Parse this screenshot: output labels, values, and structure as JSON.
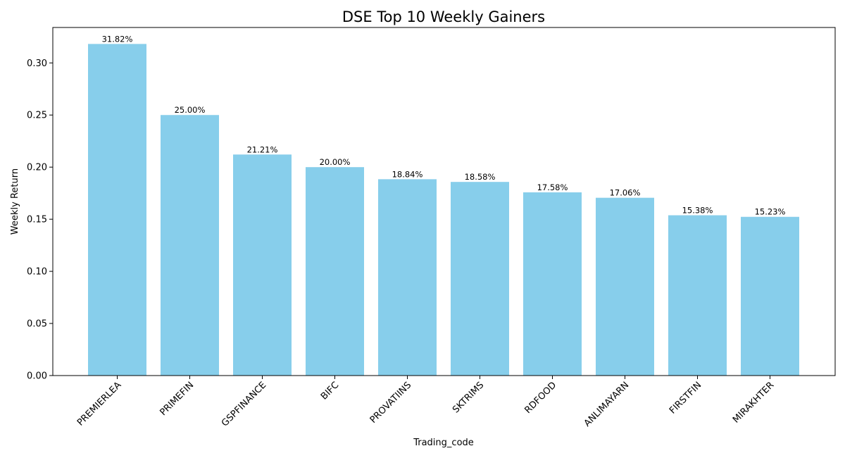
{
  "chart_data": {
    "type": "bar",
    "title": "DSE Top 10 Weekly Gainers",
    "xlabel": "Trading_code",
    "ylabel": "Weekly Return",
    "categories": [
      "PREMIERLEA",
      "PRIMEFIN",
      "GSPFINANCE",
      "BIFC",
      "PROVATIINS",
      "SKTRIMS",
      "RDFOOD",
      "ANLIMAYARN",
      "FIRSTFIN",
      "MIRAKHTER"
    ],
    "values": [
      0.3182,
      0.25,
      0.2121,
      0.2,
      0.1884,
      0.1858,
      0.1758,
      0.1706,
      0.1538,
      0.1523
    ],
    "data_labels": [
      "31.82%",
      "25.00%",
      "21.21%",
      "20.00%",
      "18.84%",
      "18.58%",
      "17.58%",
      "17.06%",
      "15.38%",
      "15.23%"
    ],
    "yticks": [
      0.0,
      0.05,
      0.1,
      0.15,
      0.2,
      0.25,
      0.3
    ],
    "ytick_labels": [
      "0.00",
      "0.05",
      "0.10",
      "0.15",
      "0.20",
      "0.25",
      "0.30"
    ],
    "ylim": [
      0,
      0.334
    ],
    "grid": false,
    "legend": "none",
    "colors": {
      "bar": "#87ceeb",
      "axis": "#000000",
      "text": "#000000"
    }
  }
}
